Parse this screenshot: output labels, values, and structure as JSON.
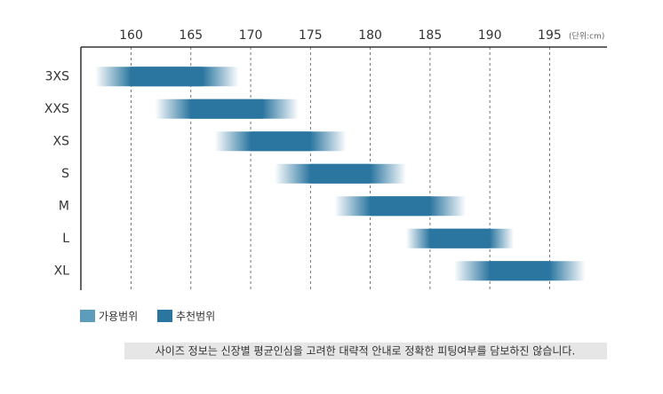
{
  "chart_data": {
    "type": "range-bar",
    "unit_label": "(단위:cm)",
    "categories": [
      "3XS",
      "XXS",
      "XS",
      "S",
      "M",
      "L",
      "XL"
    ],
    "series": [
      {
        "name": "가용범위",
        "color": "#5e9cbb",
        "values": [
          [
            157,
            169
          ],
          [
            162,
            174
          ],
          [
            167,
            178
          ],
          [
            172,
            183
          ],
          [
            177,
            188
          ],
          [
            183,
            192
          ],
          [
            187,
            198
          ]
        ]
      },
      {
        "name": "추천범위",
        "color": "#2b76a0",
        "values": [
          [
            160,
            166
          ],
          [
            165,
            171
          ],
          [
            170,
            175
          ],
          [
            175,
            180
          ],
          [
            180,
            185
          ],
          [
            185,
            190
          ],
          [
            190,
            195
          ]
        ]
      }
    ],
    "xlim": [
      155.8,
      199.8
    ],
    "xticks": [
      160,
      165,
      170,
      175,
      180,
      185,
      190,
      195
    ],
    "grid": true,
    "note": "사이즈 정보는 신장별 평균인심을 고려한 대략적 안내로 정확한 피팅여부를 담보하진 않습니다."
  }
}
